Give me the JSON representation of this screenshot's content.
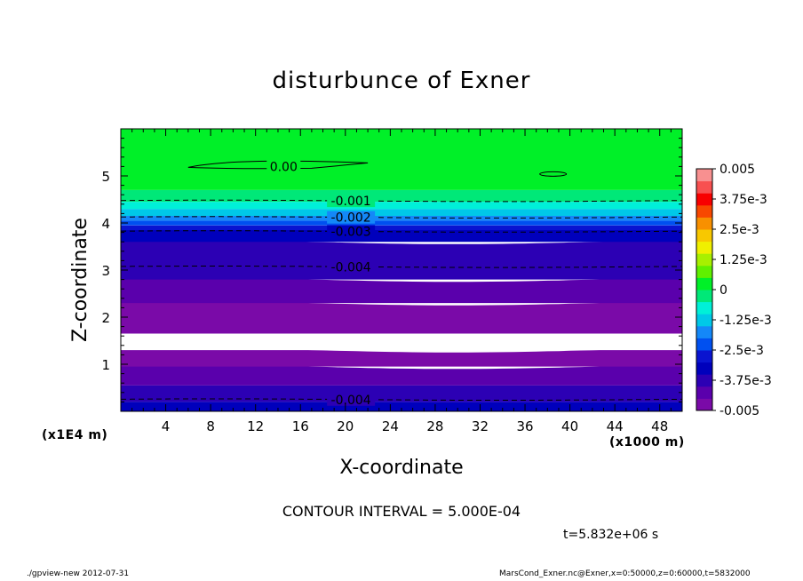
{
  "chart_data": {
    "type": "heatmap",
    "title": "disturbunce of Exner",
    "xlabel": "X-coordinate",
    "ylabel": "Z-coordinate",
    "x_unit": "(x1000 m)",
    "y_unit": "(x1E4 m)",
    "xlim": [
      0,
      50
    ],
    "ylim": [
      0,
      6
    ],
    "x_ticks": [
      "4",
      "8",
      "12",
      "16",
      "20",
      "24",
      "28",
      "32",
      "36",
      "40",
      "44",
      "48"
    ],
    "y_ticks": [
      "1",
      "2",
      "3",
      "4",
      "5"
    ],
    "x_tick_values": [
      4,
      8,
      12,
      16,
      20,
      24,
      28,
      32,
      36,
      40,
      44,
      48
    ],
    "y_tick_values": [
      1,
      2,
      3,
      4,
      5
    ],
    "colorbar": {
      "range": [
        -0.005,
        0.005
      ],
      "labels": [
        "0.005",
        "3.75e-3",
        "2.5e-3",
        "1.25e-3",
        "0",
        "-1.25e-3",
        "-2.5e-3",
        "-3.75e-3",
        "-0.005"
      ],
      "label_values": [
        0.005,
        0.00375,
        0.0025,
        0.00125,
        0,
        -0.00125,
        -0.0025,
        -0.00375,
        -0.005
      ],
      "colors": [
        "#7a0aa8",
        "#5a00ac",
        "#2c00b4",
        "#0000bc",
        "#0a14d0",
        "#0050f0",
        "#1488f8",
        "#00c8e8",
        "#00f0d8",
        "#00e878",
        "#00f028",
        "#60f000",
        "#a8f000",
        "#f0f000",
        "#f8c800",
        "#f89000",
        "#f84800",
        "#f80000",
        "#f85050",
        "#f89090"
      ]
    },
    "bands": [
      {
        "z0": 0.0,
        "z1": 0.2,
        "color": "#0000bc"
      },
      {
        "z0": 0.2,
        "z1": 0.55,
        "color": "#2c00b4"
      },
      {
        "z0": 0.55,
        "z1": 0.95,
        "color": "#5a00ac"
      },
      {
        "z0": 0.95,
        "z1": 1.3,
        "color": "#7a0aa8"
      },
      {
        "z0": 1.3,
        "z1": 1.65,
        "color": "#ffffff"
      },
      {
        "z0": 1.65,
        "z1": 2.3,
        "color": "#7a0aa8"
      },
      {
        "z0": 2.3,
        "z1": 2.8,
        "color": "#5a00ac"
      },
      {
        "z0": 2.8,
        "z1": 3.6,
        "color": "#2c00b4"
      },
      {
        "z0": 3.6,
        "z1": 3.85,
        "color": "#0000bc"
      },
      {
        "z0": 3.85,
        "z1": 3.95,
        "color": "#0a14d0"
      },
      {
        "z0": 3.95,
        "z1": 4.05,
        "color": "#0050f0"
      },
      {
        "z0": 4.05,
        "z1": 4.15,
        "color": "#1488f8"
      },
      {
        "z0": 4.15,
        "z1": 4.3,
        "color": "#00c8e8"
      },
      {
        "z0": 4.3,
        "z1": 4.45,
        "color": "#00f0d8"
      },
      {
        "z0": 4.45,
        "z1": 4.7,
        "color": "#00e878"
      },
      {
        "z0": 4.7,
        "z1": 6.0,
        "color": "#00f028"
      }
    ],
    "contours": [
      {
        "label": "0.00",
        "z": 5.2,
        "x_label": 14.5,
        "dashed": false
      },
      {
        "label": "-0.001",
        "z": 4.47,
        "x_label": 20.5,
        "dashed": true
      },
      {
        "label": "-0.002",
        "z": 4.12,
        "x_label": 20.5,
        "dashed": true
      },
      {
        "label": "-0.003",
        "z": 3.82,
        "x_label": 20.5,
        "dashed": true
      },
      {
        "label": "-0.004",
        "z": 3.07,
        "x_label": 20.5,
        "dashed": true
      },
      {
        "label": "-0.004",
        "z": 0.25,
        "x_label": 20.5,
        "dashed": true
      }
    ]
  },
  "contour_interval": "CONTOUR INTERVAL = 5.000E-04",
  "time_label": "t=5.832e+06 s",
  "footer_left": "./gpview-new   2012-07-31",
  "footer_right": "MarsCond_Exner.nc@Exner,x=0:50000,z=0:60000,t=5832000"
}
